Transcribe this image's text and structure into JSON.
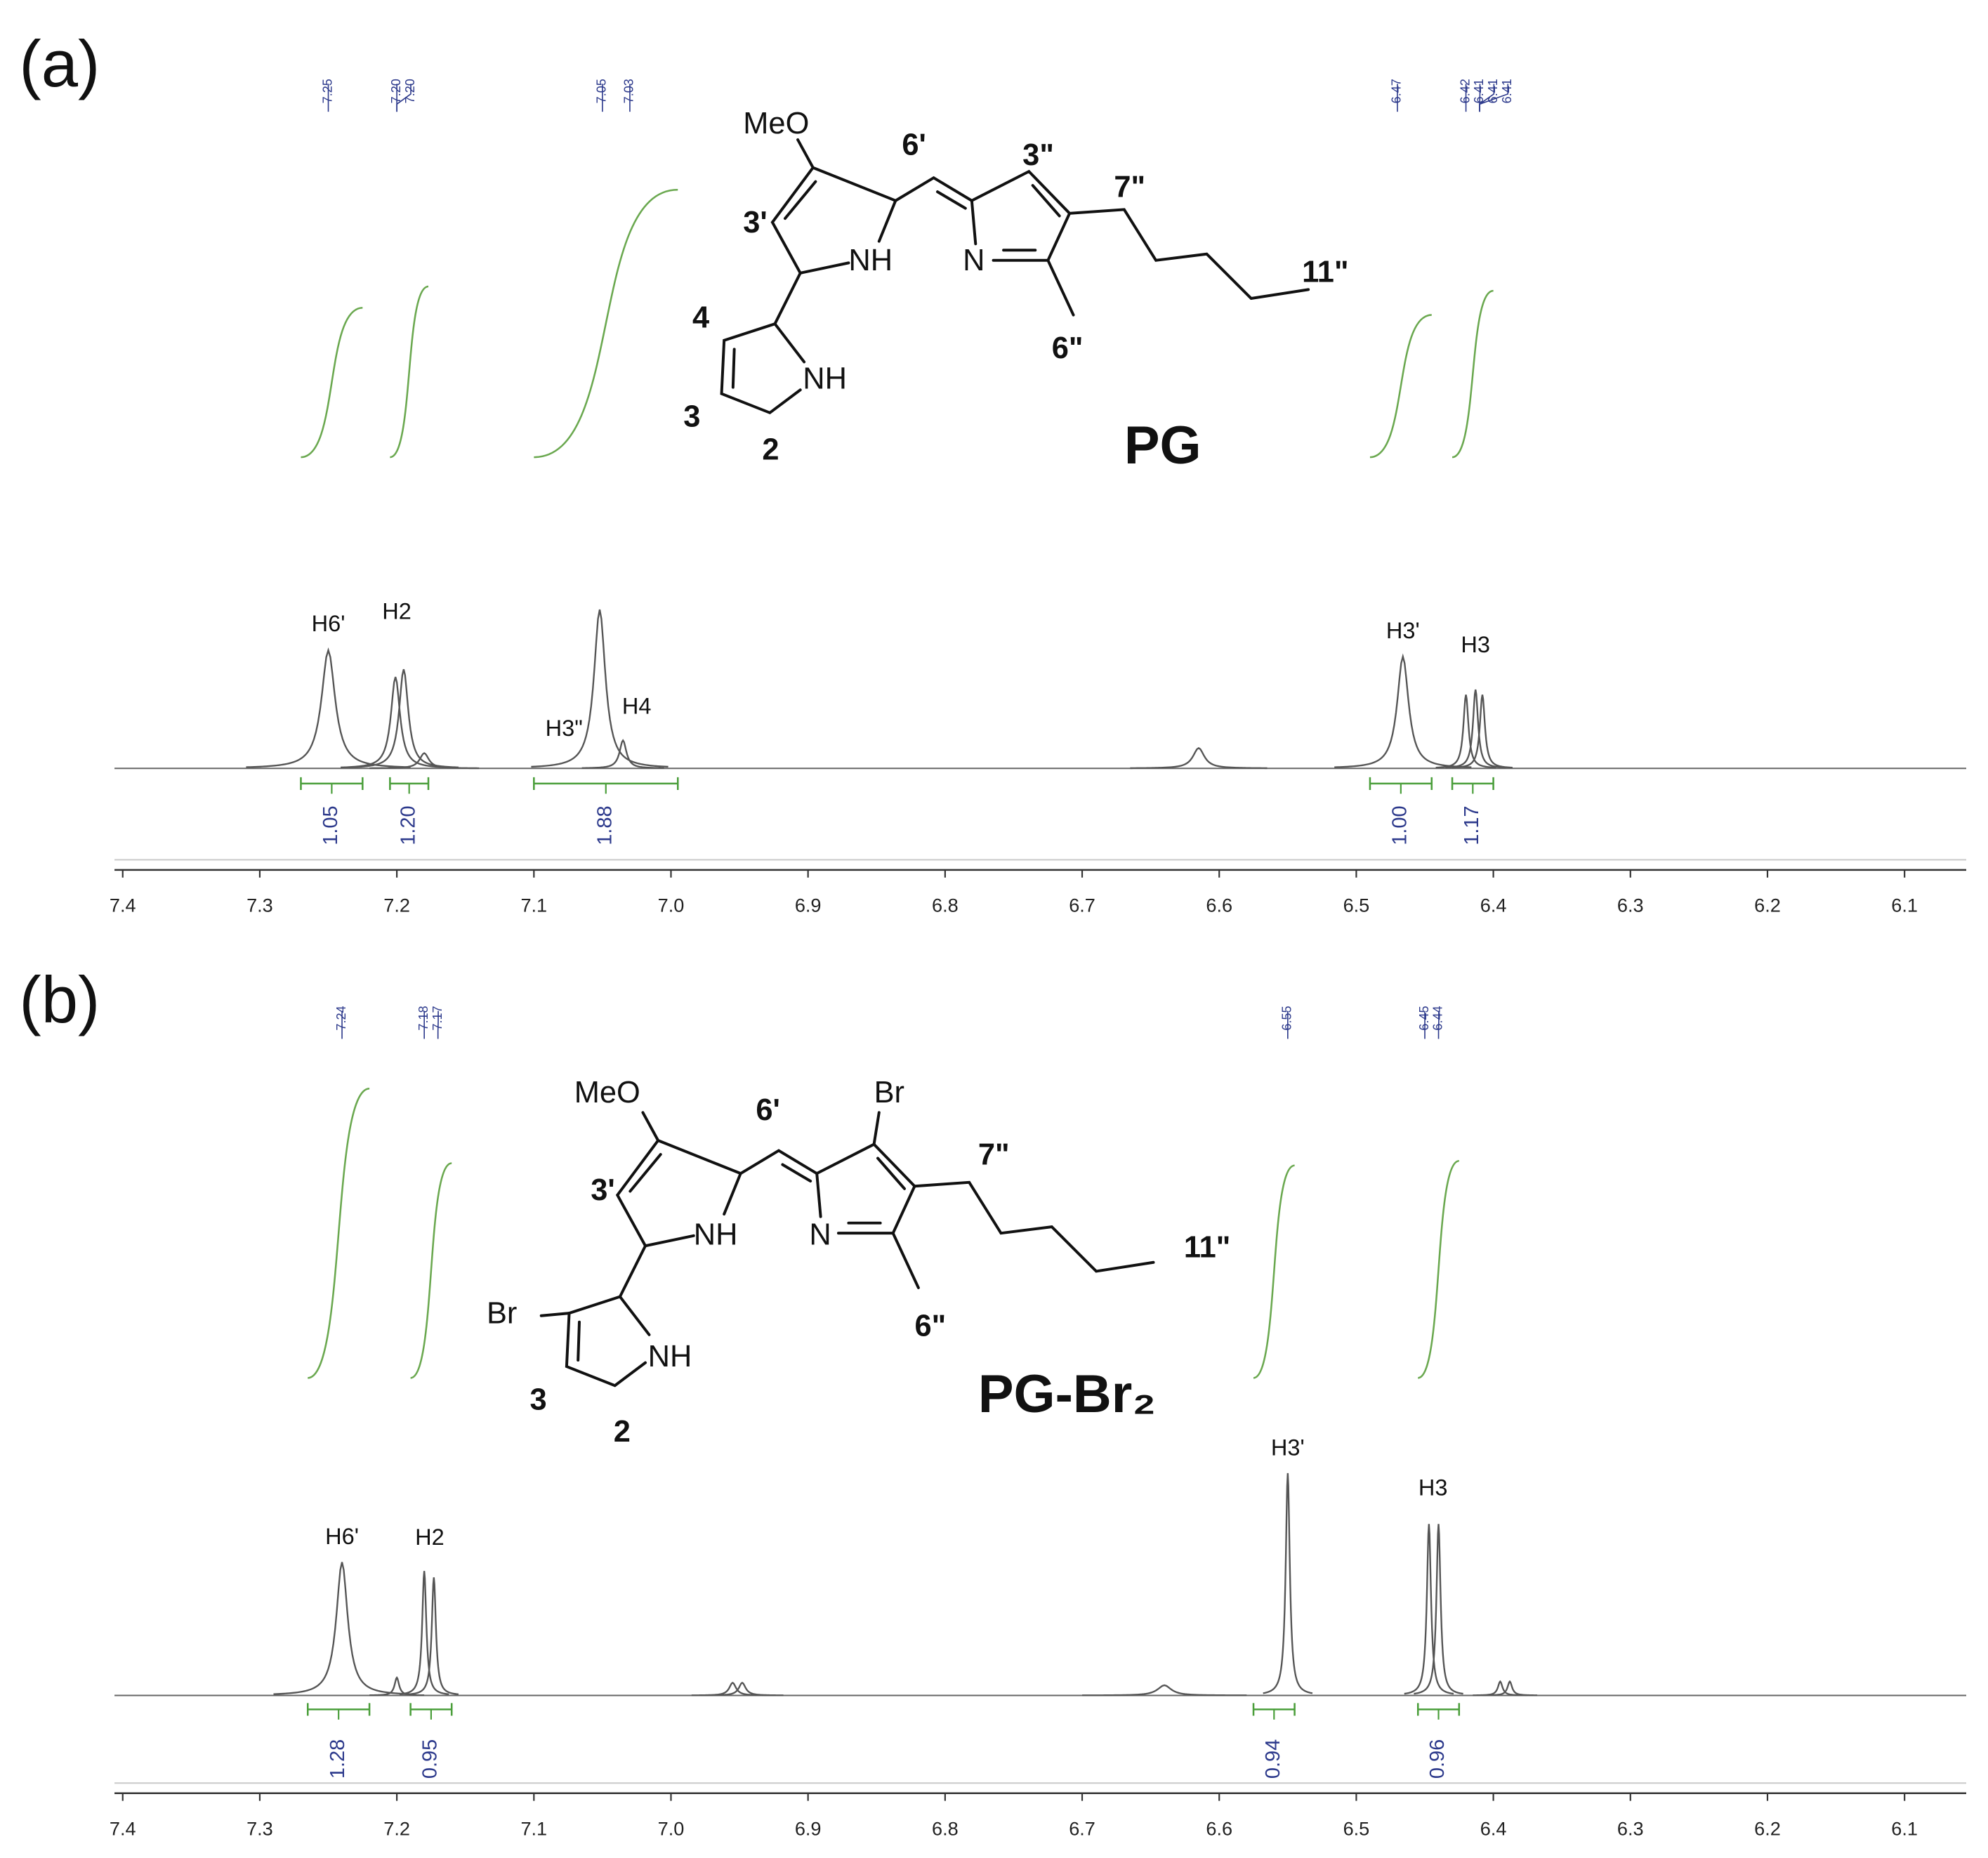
{
  "chart_data": [
    {
      "type": "nmr",
      "panel_label": "(a)",
      "structure": {
        "name": "PG",
        "labels": [
          "MeO",
          "6'",
          "3\"",
          "7\"",
          "3'",
          "NH",
          "N",
          "11\"",
          "4",
          "NH",
          "6\"",
          "3",
          "2"
        ]
      },
      "xlim": [
        7.406,
        6.055
      ],
      "xticks": [
        7.4,
        7.3,
        7.2,
        7.1,
        {
          "value": 7,
          "label": "7.0"
        },
        6.9,
        6.8,
        6.7,
        6.6,
        6.5,
        6.4,
        6.3,
        6.2,
        6.1
      ],
      "shift_labels": [
        7.25,
        {
          "value": 7.2,
          "label": "7.20"
        },
        {
          "value": 7.2,
          "label": "7.20"
        },
        7.05,
        7.03,
        6.47,
        6.42,
        6.41,
        6.41,
        6.41
      ],
      "peaks": [
        {
          "shift": 7.25,
          "height": 93,
          "width": 0.006
        },
        {
          "shift": 7.201,
          "height": 72,
          "width": 0.004
        },
        {
          "shift": 7.195,
          "height": 78,
          "width": 0.004
        },
        {
          "shift": 7.18,
          "height": 12,
          "width": 0.004
        },
        {
          "shift": 7.052,
          "height": 125,
          "width": 0.005
        },
        {
          "shift": 7.035,
          "height": 22,
          "width": 0.003
        },
        {
          "shift": 6.615,
          "height": 16,
          "width": 0.005
        },
        {
          "shift": 6.466,
          "height": 88,
          "width": 0.005
        },
        {
          "shift": 6.42,
          "height": 58,
          "width": 0.0022
        },
        {
          "shift": 6.413,
          "height": 62,
          "width": 0.0022
        },
        {
          "shift": 6.408,
          "height": 58,
          "width": 0.0022
        }
      ],
      "assignments": [
        {
          "label": "H6'",
          "shift": 7.25
        },
        {
          "label": "H2",
          "shift": 7.2
        },
        {
          "label": "H3\"",
          "shift": 7.078
        },
        {
          "label": "H4",
          "shift": 7.025
        },
        {
          "label": "H3'",
          "shift": 6.466
        },
        {
          "label": "H3",
          "shift": 6.413
        }
      ],
      "integrals": [
        {
          "from": 7.27,
          "to": 7.225,
          "value": 1.05
        },
        {
          "from": 7.205,
          "to": 7.177,
          "value": {
            "value": 1.2,
            "label": "1.20"
          }
        },
        {
          "from": 7.1,
          "to": 6.995,
          "value": 1.88
        },
        {
          "from": 6.49,
          "to": 6.445,
          "value": {
            "value": 1,
            "label": "1.00"
          }
        },
        {
          "from": 6.43,
          "to": 6.4,
          "value": 1.17
        }
      ]
    },
    {
      "type": "nmr",
      "panel_label": "(b)",
      "structure": {
        "name": "PG-Br₂",
        "labels": [
          "MeO",
          "6'",
          "Br",
          "7\"",
          "3'",
          "NH",
          "N",
          "11\"",
          "Br",
          "NH",
          "6\"",
          "3",
          "2"
        ]
      },
      "xlim": [
        7.406,
        6.055
      ],
      "xticks": [
        7.4,
        7.3,
        7.2,
        7.1,
        {
          "value": 7,
          "label": "7.0"
        },
        6.9,
        6.8,
        6.7,
        6.6,
        6.5,
        6.4,
        6.3,
        6.2,
        6.1
      ],
      "shift_labels": [
        7.24,
        7.18,
        7.17,
        6.55,
        6.45,
        6.44
      ],
      "peaks": [
        {
          "shift": 7.24,
          "height": 105,
          "width": 0.005
        },
        {
          "shift": 7.2,
          "height": 14,
          "width": 0.002
        },
        {
          "shift": 7.18,
          "height": 98,
          "width": 0.0018
        },
        {
          "shift": 7.173,
          "height": 93,
          "width": 0.0018
        },
        {
          "shift": 6.955,
          "height": 10,
          "width": 0.003
        },
        {
          "shift": 6.948,
          "height": 10,
          "width": 0.003
        },
        {
          "shift": 6.64,
          "height": 8,
          "width": 0.006
        },
        {
          "shift": 6.55,
          "height": 175,
          "width": 0.0018
        },
        {
          "shift": 6.447,
          "height": 135,
          "width": 0.0018
        },
        {
          "shift": 6.44,
          "height": 135,
          "width": 0.0018
        },
        {
          "shift": 6.395,
          "height": 11,
          "width": 0.002
        },
        {
          "shift": 6.388,
          "height": 11,
          "width": 0.002
        }
      ],
      "assignments": [
        {
          "label": "H6'",
          "shift": 7.24
        },
        {
          "label": "H2",
          "shift": 7.176
        },
        {
          "label": "H3'",
          "shift": 6.55
        },
        {
          "label": "H3",
          "shift": 6.444
        }
      ],
      "integrals": [
        {
          "from": 7.265,
          "to": 7.22,
          "value": 1.28
        },
        {
          "from": 7.19,
          "to": 7.16,
          "value": 0.95
        },
        {
          "from": 6.575,
          "to": 6.545,
          "value": 0.94
        },
        {
          "from": 6.455,
          "to": 6.425,
          "value": 0.96
        }
      ]
    }
  ]
}
